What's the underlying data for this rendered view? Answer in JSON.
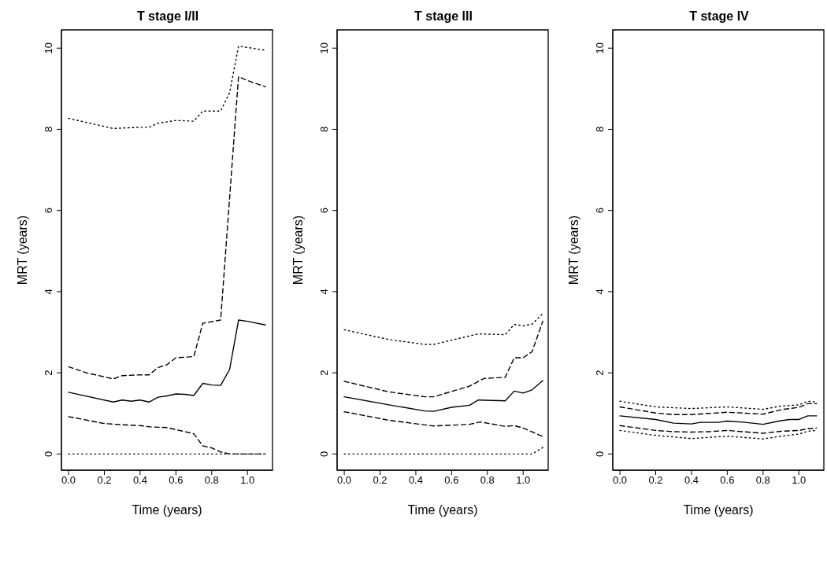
{
  "chart_data": [
    {
      "type": "line",
      "title": "T stage I/II",
      "xlabel": "Time (years)",
      "ylabel": "MRT (years)",
      "xlim": [
        -0.04,
        1.14
      ],
      "ylim": [
        -0.4,
        10.45
      ],
      "xticks": [
        {
          "value": 0,
          "label": "0.0"
        },
        {
          "value": 0.2,
          "label": "0.2"
        },
        {
          "value": 0.4,
          "label": "0.4"
        },
        {
          "value": 0.6,
          "label": "0.6"
        },
        {
          "value": 0.8,
          "label": "0.8"
        },
        {
          "value": 1,
          "label": "1.0"
        }
      ],
      "yticks": [
        0,
        2,
        4,
        6,
        8,
        10
      ],
      "series": [
        {
          "color": "#000000",
          "line_style": "solid",
          "x": [
            0,
            0.25,
            0.3,
            0.35,
            0.4,
            0.45,
            0.5,
            0.55,
            0.6,
            0.65,
            0.7,
            0.75,
            0.8,
            0.85,
            0.9,
            0.95,
            1.0,
            1.1
          ],
          "values": [
            1.52,
            1.28,
            1.33,
            1.3,
            1.33,
            1.28,
            1.4,
            1.43,
            1.48,
            1.47,
            1.44,
            1.74,
            1.7,
            1.69,
            2.08,
            3.3,
            3.27,
            3.18
          ]
        },
        {
          "color": "#000000",
          "line_style": "dashed",
          "x": [
            0,
            0.1,
            0.25,
            0.3,
            0.4,
            0.45,
            0.5,
            0.55,
            0.6,
            0.7,
            0.75,
            0.85,
            0.95,
            1.0,
            1.1
          ],
          "values": [
            2.15,
            2.0,
            1.85,
            1.93,
            1.95,
            1.95,
            2.13,
            2.2,
            2.37,
            2.4,
            3.22,
            3.3,
            9.3,
            9.2,
            9.05
          ]
        },
        {
          "color": "#000000",
          "line_style": "dashed",
          "x": [
            0,
            0.2,
            0.3,
            0.4,
            0.45,
            0.55,
            0.6,
            0.7,
            0.75,
            0.8,
            0.85,
            0.9,
            1.1
          ],
          "values": [
            0.92,
            0.75,
            0.72,
            0.7,
            0.67,
            0.65,
            0.6,
            0.5,
            0.2,
            0.15,
            0.05,
            0,
            0
          ]
        },
        {
          "color": "#000000",
          "line_style": "dotted",
          "x": [
            0,
            0.25,
            0.4,
            0.45,
            0.5,
            0.6,
            0.7,
            0.75,
            0.85,
            0.9,
            0.95,
            1.1
          ],
          "values": [
            8.27,
            8.02,
            8.05,
            8.05,
            8.15,
            8.22,
            8.2,
            8.45,
            8.45,
            8.9,
            10.05,
            9.95
          ]
        },
        {
          "color": "#000000",
          "line_style": "dotted",
          "x": [
            0,
            1.1
          ],
          "values": [
            0,
            0
          ]
        }
      ]
    },
    {
      "type": "line",
      "title": "T stage III",
      "xlabel": "Time (years)",
      "ylabel": "MRT (years)",
      "xlim": [
        -0.04,
        1.14
      ],
      "ylim": [
        -0.4,
        10.45
      ],
      "xticks": [
        {
          "value": 0,
          "label": "0.0"
        },
        {
          "value": 0.2,
          "label": "0.2"
        },
        {
          "value": 0.4,
          "label": "0.4"
        },
        {
          "value": 0.6,
          "label": "0.6"
        },
        {
          "value": 0.8,
          "label": "0.8"
        },
        {
          "value": 1,
          "label": "1.0"
        }
      ],
      "yticks": [
        0,
        2,
        4,
        6,
        8,
        10
      ],
      "series": [
        {
          "color": "#000000",
          "line_style": "solid",
          "x": [
            0,
            0.25,
            0.45,
            0.5,
            0.6,
            0.7,
            0.75,
            0.9,
            0.95,
            1.0,
            1.05,
            1.11
          ],
          "values": [
            1.41,
            1.21,
            1.06,
            1.05,
            1.15,
            1.2,
            1.33,
            1.31,
            1.55,
            1.5,
            1.58,
            1.81
          ]
        },
        {
          "color": "#000000",
          "line_style": "dashed",
          "x": [
            0,
            0.25,
            0.45,
            0.5,
            0.7,
            0.78,
            0.9,
            0.95,
            1.0,
            1.05,
            1.11
          ],
          "values": [
            1.79,
            1.53,
            1.41,
            1.41,
            1.67,
            1.86,
            1.89,
            2.37,
            2.37,
            2.52,
            3.27
          ]
        },
        {
          "color": "#000000",
          "line_style": "dashed",
          "x": [
            0,
            0.25,
            0.5,
            0.7,
            0.76,
            0.9,
            0.95,
            1.0,
            1.11
          ],
          "values": [
            1.04,
            0.83,
            0.69,
            0.73,
            0.79,
            0.68,
            0.7,
            0.64,
            0.43
          ]
        },
        {
          "color": "#000000",
          "line_style": "dotted",
          "x": [
            0,
            0.25,
            0.45,
            0.5,
            0.7,
            0.75,
            0.9,
            0.95,
            1.0,
            1.05,
            1.11
          ],
          "values": [
            3.06,
            2.82,
            2.7,
            2.7,
            2.91,
            2.96,
            2.94,
            3.19,
            3.16,
            3.2,
            3.46
          ]
        },
        {
          "color": "#000000",
          "line_style": "dotted",
          "x": [
            0,
            1.05,
            1.11
          ],
          "values": [
            0,
            0,
            0.16
          ]
        }
      ]
    },
    {
      "type": "line",
      "title": "T stage IV",
      "xlabel": "Time (years)",
      "ylabel": "MRT (years)",
      "xlim": [
        -0.04,
        1.14
      ],
      "ylim": [
        -0.4,
        10.45
      ],
      "xticks": [
        {
          "value": 0,
          "label": "0.0"
        },
        {
          "value": 0.2,
          "label": "0.2"
        },
        {
          "value": 0.4,
          "label": "0.4"
        },
        {
          "value": 0.6,
          "label": "0.6"
        },
        {
          "value": 0.8,
          "label": "0.8"
        },
        {
          "value": 1,
          "label": "1.0"
        }
      ],
      "yticks": [
        0,
        2,
        4,
        6,
        8,
        10
      ],
      "series": [
        {
          "color": "#000000",
          "line_style": "solid",
          "x": [
            0,
            0.2,
            0.3,
            0.4,
            0.45,
            0.55,
            0.6,
            0.7,
            0.8,
            0.9,
            0.95,
            1.0,
            1.05,
            1.1
          ],
          "values": [
            0.94,
            0.85,
            0.76,
            0.74,
            0.78,
            0.78,
            0.81,
            0.78,
            0.73,
            0.82,
            0.85,
            0.85,
            0.94,
            0.94
          ]
        },
        {
          "color": "#000000",
          "line_style": "dashed",
          "x": [
            0,
            0.2,
            0.3,
            0.4,
            0.5,
            0.6,
            0.8,
            0.9,
            1.0,
            1.05,
            1.1
          ],
          "values": [
            1.16,
            1.01,
            0.97,
            0.97,
            1.0,
            1.03,
            0.98,
            1.09,
            1.15,
            1.24,
            1.24
          ]
        },
        {
          "color": "#000000",
          "line_style": "dashed",
          "x": [
            0,
            0.2,
            0.3,
            0.4,
            0.5,
            0.6,
            0.8,
            0.9,
            1.0,
            1.05,
            1.1
          ],
          "values": [
            0.7,
            0.58,
            0.55,
            0.54,
            0.55,
            0.58,
            0.51,
            0.56,
            0.58,
            0.62,
            0.64
          ]
        },
        {
          "color": "#000000",
          "line_style": "dotted",
          "x": [
            0,
            0.2,
            0.4,
            0.6,
            0.8,
            0.9,
            1.0,
            1.05,
            1.1
          ],
          "values": [
            1.3,
            1.16,
            1.12,
            1.16,
            1.1,
            1.18,
            1.21,
            1.3,
            1.28
          ]
        },
        {
          "color": "#000000",
          "line_style": "dotted",
          "x": [
            0,
            0.2,
            0.4,
            0.6,
            0.8,
            0.9,
            1.0,
            1.05,
            1.1
          ],
          "values": [
            0.58,
            0.46,
            0.38,
            0.44,
            0.37,
            0.44,
            0.49,
            0.56,
            0.58
          ]
        }
      ]
    }
  ]
}
